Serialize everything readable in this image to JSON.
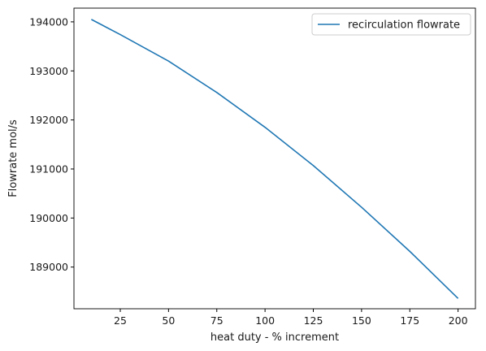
{
  "chart_data": {
    "type": "line",
    "title": "",
    "xlabel": "heat duty - % increment",
    "ylabel": "Flowrate mol/s",
    "xlim": [
      1,
      209
    ],
    "ylim": [
      188150,
      194280
    ],
    "x_ticks": [
      25,
      50,
      75,
      100,
      125,
      150,
      175,
      200
    ],
    "x_tick_labels": [
      "25",
      "50",
      "75",
      "100",
      "125",
      "150",
      "175",
      "200"
    ],
    "y_ticks": [
      189000,
      190000,
      191000,
      192000,
      193000,
      194000
    ],
    "y_tick_labels": [
      "189000",
      "190000",
      "191000",
      "192000",
      "193000",
      "194000"
    ],
    "grid": false,
    "legend": {
      "position": "top-right"
    },
    "colors": {
      "series": "#1f77b4",
      "axis": "#000000",
      "legend_border": "#cccccc"
    },
    "series": [
      {
        "name": "recirculation flowrate",
        "x": [
          10,
          25,
          50,
          75,
          100,
          125,
          150,
          175,
          200
        ],
        "y": [
          194050,
          193740,
          193200,
          192560,
          191850,
          191070,
          190220,
          189320,
          188360
        ]
      }
    ]
  }
}
